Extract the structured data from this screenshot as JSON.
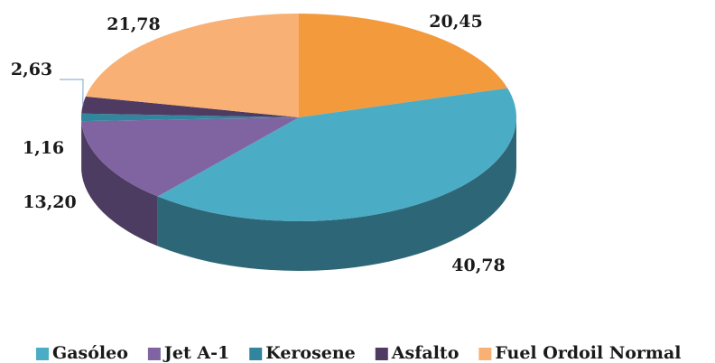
{
  "chart_data": {
    "type": "pie3d",
    "categories": [
      null,
      "Gasóleo",
      "Jet A-1",
      "Kerosene",
      "Asfalto",
      "Fuel Ordoil Normal"
    ],
    "values": [
      20.45,
      40.78,
      13.2,
      1.16,
      2.63,
      21.78
    ],
    "value_labels": [
      "20,45",
      "40,78",
      "13,20",
      "1,16",
      "2,63",
      "21,78"
    ],
    "colors": [
      "#f39a3d",
      "#4bacc6",
      "#8064a2",
      "#31859c",
      "#4f3b62",
      "#f9b074"
    ],
    "legend": "bottom"
  }
}
